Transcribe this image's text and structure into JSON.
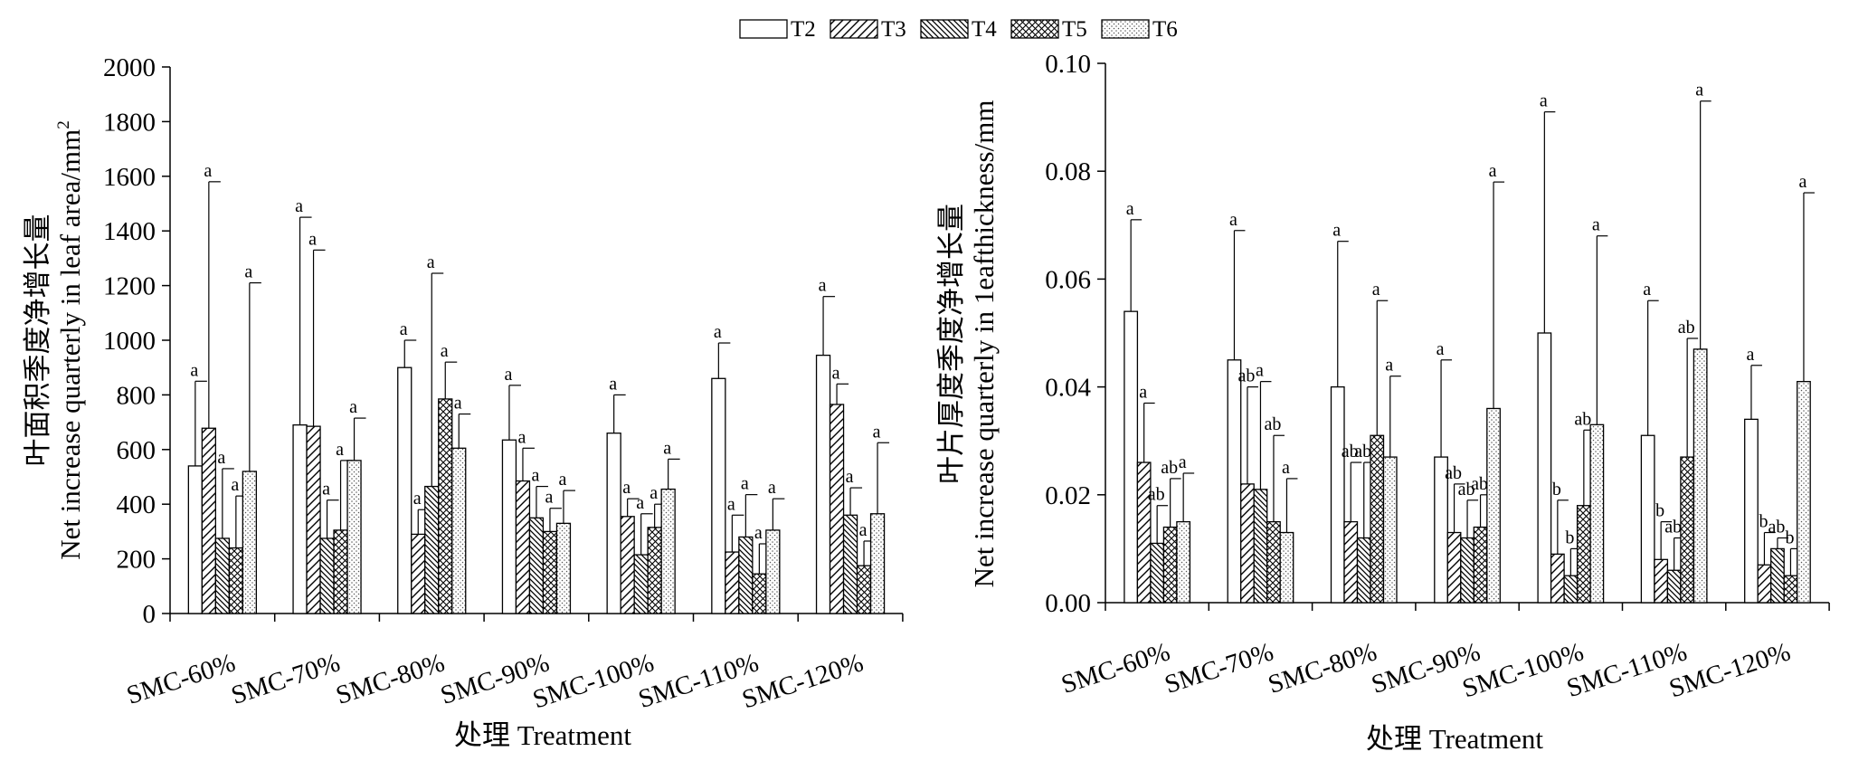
{
  "legend": [
    {
      "label": "T2",
      "pattern": "blank"
    },
    {
      "label": "T3",
      "pattern": "diag-up"
    },
    {
      "label": "T4",
      "pattern": "diag-down"
    },
    {
      "label": "T5",
      "pattern": "cross"
    },
    {
      "label": "T6",
      "pattern": "dots"
    }
  ],
  "chart_data": [
    {
      "type": "bar",
      "categories": [
        "SMC-60%",
        "SMC-70%",
        "SMC-80%",
        "SMC-90%",
        "SMC-100%",
        "SMC-110%",
        "SMC-120%"
      ],
      "xlabel": "处理  Treatment",
      "ylabel_cn": "叶面积季度净增长量",
      "ylabel_en": "Net increase quarterly in leaf area/mm",
      "ylabel_superscript": "2",
      "ylim": [
        0,
        2000
      ],
      "yticks": [
        "0",
        "200",
        "400",
        "600",
        "800",
        "1000",
        "1200",
        "1400",
        "1600",
        "1800",
        "2000"
      ],
      "series": [
        {
          "name": "T2",
          "values": [
            540,
            690,
            900,
            635,
            660,
            860,
            945
          ],
          "errors": [
            850,
            1450,
            1000,
            835,
            800,
            990,
            1160
          ],
          "letters": [
            "a",
            "a",
            "a",
            "a",
            "a",
            "a",
            "a"
          ]
        },
        {
          "name": "T3",
          "values": [
            678,
            685,
            290,
            485,
            355,
            225,
            765
          ],
          "errors": [
            1580,
            1330,
            380,
            605,
            420,
            360,
            840
          ],
          "letters": [
            "a",
            "a",
            "a",
            "a",
            "a",
            "a",
            "a"
          ]
        },
        {
          "name": "T4",
          "values": [
            275,
            275,
            465,
            350,
            215,
            280,
            360
          ],
          "errors": [
            530,
            415,
            1245,
            465,
            365,
            435,
            460
          ],
          "letters": [
            "a",
            "a",
            "a",
            "a",
            "a",
            "a",
            "a"
          ]
        },
        {
          "name": "T5",
          "values": [
            240,
            305,
            785,
            300,
            315,
            145,
            175
          ],
          "errors": [
            430,
            560,
            920,
            385,
            400,
            255,
            265
          ],
          "letters": [
            "a",
            "a",
            "a",
            "a",
            "a",
            "a",
            "a"
          ]
        },
        {
          "name": "T6",
          "values": [
            520,
            560,
            605,
            330,
            455,
            305,
            365
          ],
          "errors": [
            1210,
            715,
            730,
            450,
            565,
            420,
            625
          ],
          "letters": [
            "a",
            "a",
            "a",
            "a",
            "a",
            "a",
            "a"
          ]
        }
      ]
    },
    {
      "type": "bar",
      "categories": [
        "SMC-60%",
        "SMC-70%",
        "SMC-80%",
        "SMC-90%",
        "SMC-100%",
        "SMC-110%",
        "SMC-120%"
      ],
      "xlabel": "处理  Treatment",
      "ylabel_cn": "叶片厚度季度净增长量",
      "ylabel_en": "Net increase quarterly in 1eafthickness/mm",
      "ylim": [
        0,
        0.1
      ],
      "yticks": [
        "0.00",
        "0.02",
        "0.04",
        "0.06",
        "0.08",
        "0.10"
      ],
      "series": [
        {
          "name": "T2",
          "values": [
            0.054,
            0.045,
            0.04,
            0.027,
            0.05,
            0.031,
            0.034
          ],
          "errors": [
            0.071,
            0.069,
            0.067,
            0.045,
            0.091,
            0.056,
            0.044
          ],
          "letters": [
            "a",
            "a",
            "a",
            "a",
            "a",
            "a",
            "a"
          ]
        },
        {
          "name": "T3",
          "values": [
            0.026,
            0.022,
            0.015,
            0.013,
            0.009,
            0.008,
            0.007
          ],
          "errors": [
            0.037,
            0.04,
            0.026,
            0.022,
            0.019,
            0.015,
            0.013
          ],
          "letters": [
            "a",
            "ab",
            "ab",
            "ab",
            "b",
            "b",
            "b"
          ]
        },
        {
          "name": "T4",
          "values": [
            0.011,
            0.021,
            0.012,
            0.012,
            0.005,
            0.006,
            0.01
          ],
          "errors": [
            0.018,
            0.041,
            0.026,
            0.019,
            0.01,
            0.012,
            0.012
          ],
          "letters": [
            "ab",
            "a",
            "ab",
            "ab",
            "b",
            "ab",
            "ab"
          ]
        },
        {
          "name": "T5",
          "values": [
            0.014,
            0.015,
            0.031,
            0.014,
            0.018,
            0.027,
            0.005
          ],
          "errors": [
            0.023,
            0.031,
            0.056,
            0.02,
            0.032,
            0.049,
            0.01
          ],
          "letters": [
            "ab",
            "ab",
            "a",
            "ab",
            "ab",
            "ab",
            "b"
          ]
        },
        {
          "name": "T6",
          "values": [
            0.015,
            0.013,
            0.027,
            0.036,
            0.033,
            0.047,
            0.041
          ],
          "errors": [
            0.024,
            0.023,
            0.042,
            0.078,
            0.068,
            0.093,
            0.076
          ],
          "letters": [
            "a",
            "a",
            "a",
            "a",
            "a",
            "a",
            "a"
          ]
        }
      ]
    }
  ]
}
